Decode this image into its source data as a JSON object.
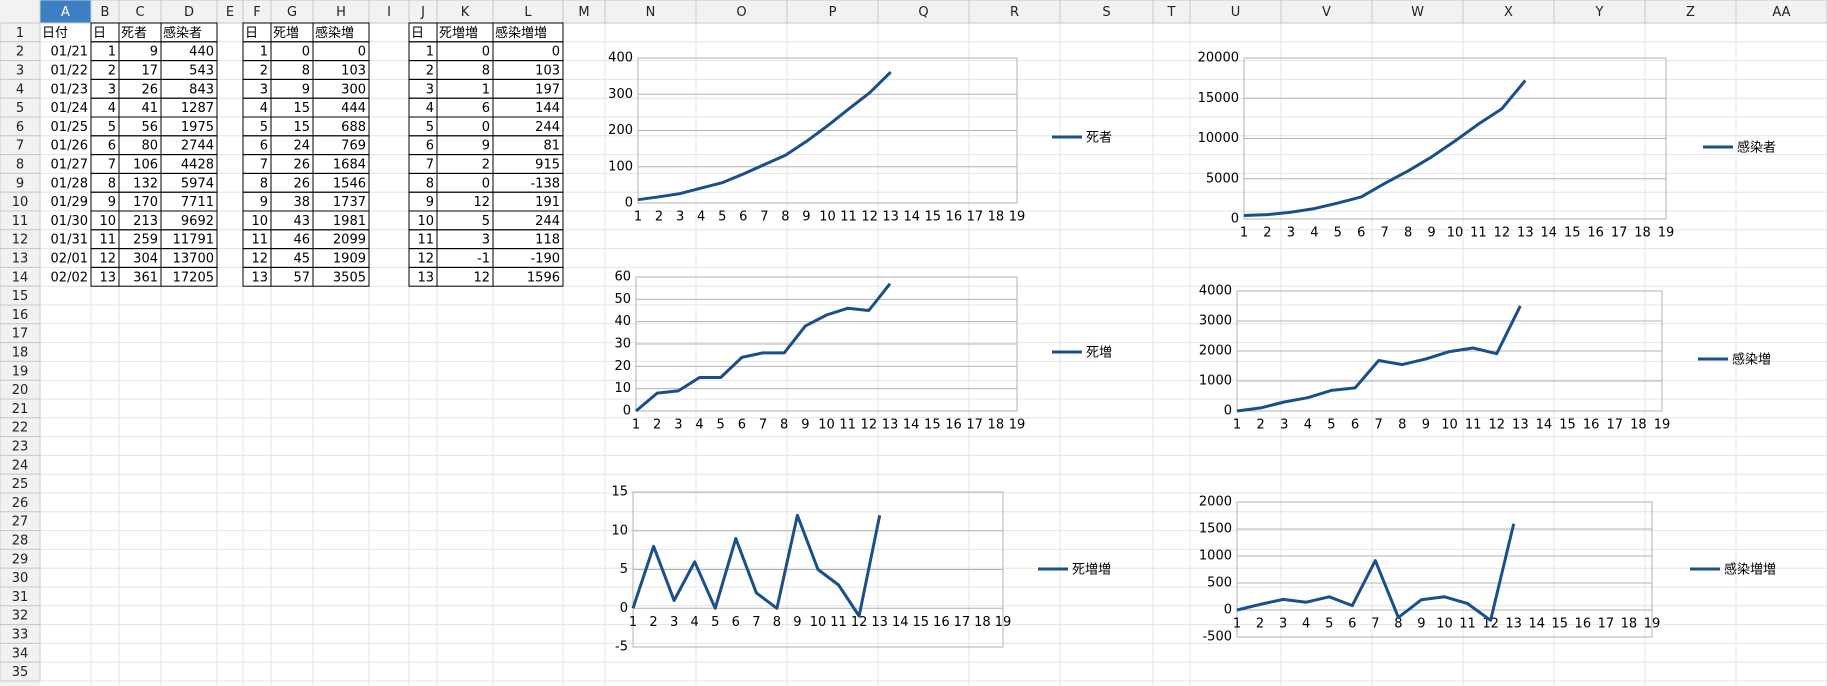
{
  "sheet": {
    "columns": [
      "A",
      "B",
      "C",
      "D",
      "E",
      "F",
      "G",
      "H",
      "I",
      "J",
      "K",
      "L",
      "M",
      "N",
      "O",
      "P",
      "Q",
      "R",
      "S",
      "T",
      "U",
      "V",
      "W",
      "X",
      "Y",
      "Z",
      "AA"
    ],
    "rows": [
      1,
      2,
      3,
      4,
      5,
      6,
      7,
      8,
      9,
      10,
      11,
      12,
      13,
      14,
      15,
      16,
      17,
      18,
      19,
      20,
      21,
      22,
      23,
      24,
      25,
      26,
      27,
      28,
      29,
      30,
      31,
      32,
      33,
      34,
      35
    ]
  },
  "tables": [
    {
      "header": [
        "日付",
        "日",
        "死者",
        "感染者"
      ],
      "rows": [
        [
          "01/21",
          1,
          9,
          440
        ],
        [
          "01/22",
          2,
          17,
          543
        ],
        [
          "01/23",
          3,
          26,
          843
        ],
        [
          "01/24",
          4,
          41,
          1287
        ],
        [
          "01/25",
          5,
          56,
          1975
        ],
        [
          "01/26",
          6,
          80,
          2744
        ],
        [
          "01/27",
          7,
          106,
          4428
        ],
        [
          "01/28",
          8,
          132,
          5974
        ],
        [
          "01/29",
          9,
          170,
          7711
        ],
        [
          "01/30",
          10,
          213,
          9692
        ],
        [
          "01/31",
          11,
          259,
          11791
        ],
        [
          "02/01",
          12,
          304,
          13700
        ],
        [
          "02/02",
          13,
          361,
          17205
        ]
      ]
    },
    {
      "header": [
        "日",
        "死増",
        "感染増"
      ],
      "rows": [
        [
          1,
          0,
          0
        ],
        [
          2,
          8,
          103
        ],
        [
          3,
          9,
          300
        ],
        [
          4,
          15,
          444
        ],
        [
          5,
          15,
          688
        ],
        [
          6,
          24,
          769
        ],
        [
          7,
          26,
          1684
        ],
        [
          8,
          26,
          1546
        ],
        [
          9,
          38,
          1737
        ],
        [
          10,
          43,
          1981
        ],
        [
          11,
          46,
          2099
        ],
        [
          12,
          45,
          1909
        ],
        [
          13,
          57,
          3505
        ]
      ]
    },
    {
      "header": [
        "日",
        "死増増",
        "感染増増"
      ],
      "rows": [
        [
          1,
          0,
          0
        ],
        [
          2,
          8,
          103
        ],
        [
          3,
          1,
          197
        ],
        [
          4,
          6,
          144
        ],
        [
          5,
          0,
          244
        ],
        [
          6,
          9,
          81
        ],
        [
          7,
          2,
          915
        ],
        [
          8,
          0,
          -138
        ],
        [
          9,
          12,
          191
        ],
        [
          10,
          5,
          244
        ],
        [
          11,
          3,
          118
        ],
        [
          12,
          -1,
          -190
        ],
        [
          13,
          12,
          1596
        ]
      ]
    }
  ],
  "charts": [
    {
      "type": "line",
      "categories": [
        1,
        2,
        3,
        4,
        5,
        6,
        7,
        8,
        9,
        10,
        11,
        12,
        13,
        14,
        15,
        16,
        17,
        18,
        19
      ],
      "series": [
        {
          "name": "死者",
          "color": "#1b4f8a",
          "values": [
            9,
            17,
            26,
            41,
            56,
            80,
            106,
            132,
            170,
            213,
            259,
            304,
            361
          ]
        }
      ],
      "ylim": [
        0,
        400
      ],
      "yticks": [
        0,
        100,
        200,
        300,
        400
      ],
      "grid": true,
      "legend": "right"
    },
    {
      "type": "line",
      "categories": [
        1,
        2,
        3,
        4,
        5,
        6,
        7,
        8,
        9,
        10,
        11,
        12,
        13,
        14,
        15,
        16,
        17,
        18,
        19
      ],
      "series": [
        {
          "name": "感染者",
          "color": "#1b4f8a",
          "values": [
            440,
            543,
            843,
            1287,
            1975,
            2744,
            4428,
            5974,
            7711,
            9692,
            11791,
            13700,
            17205
          ]
        }
      ],
      "ylim": [
        0,
        20000
      ],
      "yticks": [
        0,
        5000,
        10000,
        15000,
        20000
      ],
      "grid": true,
      "legend": "right"
    },
    {
      "type": "line",
      "categories": [
        1,
        2,
        3,
        4,
        5,
        6,
        7,
        8,
        9,
        10,
        11,
        12,
        13,
        14,
        15,
        16,
        17,
        18,
        19
      ],
      "series": [
        {
          "name": "死増",
          "color": "#1b4f8a",
          "values": [
            0,
            8,
            9,
            15,
            15,
            24,
            26,
            26,
            38,
            43,
            46,
            45,
            57
          ]
        }
      ],
      "ylim": [
        0,
        60
      ],
      "yticks": [
        0,
        10,
        20,
        30,
        40,
        50,
        60
      ],
      "grid": true,
      "legend": "right"
    },
    {
      "type": "line",
      "categories": [
        1,
        2,
        3,
        4,
        5,
        6,
        7,
        8,
        9,
        10,
        11,
        12,
        13,
        14,
        15,
        16,
        17,
        18,
        19
      ],
      "series": [
        {
          "name": "感染増",
          "color": "#1b4f8a",
          "values": [
            0,
            103,
            300,
            444,
            688,
            769,
            1684,
            1546,
            1737,
            1981,
            2099,
            1909,
            3505
          ]
        }
      ],
      "ylim": [
        0,
        4000
      ],
      "yticks": [
        0,
        1000,
        2000,
        3000,
        4000
      ],
      "grid": true,
      "legend": "right"
    },
    {
      "type": "line",
      "categories": [
        1,
        2,
        3,
        4,
        5,
        6,
        7,
        8,
        9,
        10,
        11,
        12,
        13,
        14,
        15,
        16,
        17,
        18,
        19
      ],
      "series": [
        {
          "name": "死増増",
          "color": "#1b4f8a",
          "values": [
            0,
            8,
            1,
            6,
            0,
            9,
            2,
            0,
            12,
            5,
            3,
            -1,
            12
          ]
        }
      ],
      "ylim": [
        -5,
        15
      ],
      "yticks": [
        -5,
        0,
        5,
        10,
        15
      ],
      "grid": true,
      "legend": "right"
    },
    {
      "type": "line",
      "categories": [
        1,
        2,
        3,
        4,
        5,
        6,
        7,
        8,
        9,
        10,
        11,
        12,
        13,
        14,
        15,
        16,
        17,
        18,
        19
      ],
      "series": [
        {
          "name": "感染増増",
          "color": "#1b4f8a",
          "values": [
            0,
            103,
            197,
            144,
            244,
            81,
            915,
            -138,
            191,
            244,
            118,
            -190,
            1596
          ]
        }
      ],
      "ylim": [
        -500,
        2000
      ],
      "yticks": [
        -500,
        0,
        500,
        1000,
        1500,
        2000
      ],
      "grid": true,
      "legend": "right"
    }
  ]
}
